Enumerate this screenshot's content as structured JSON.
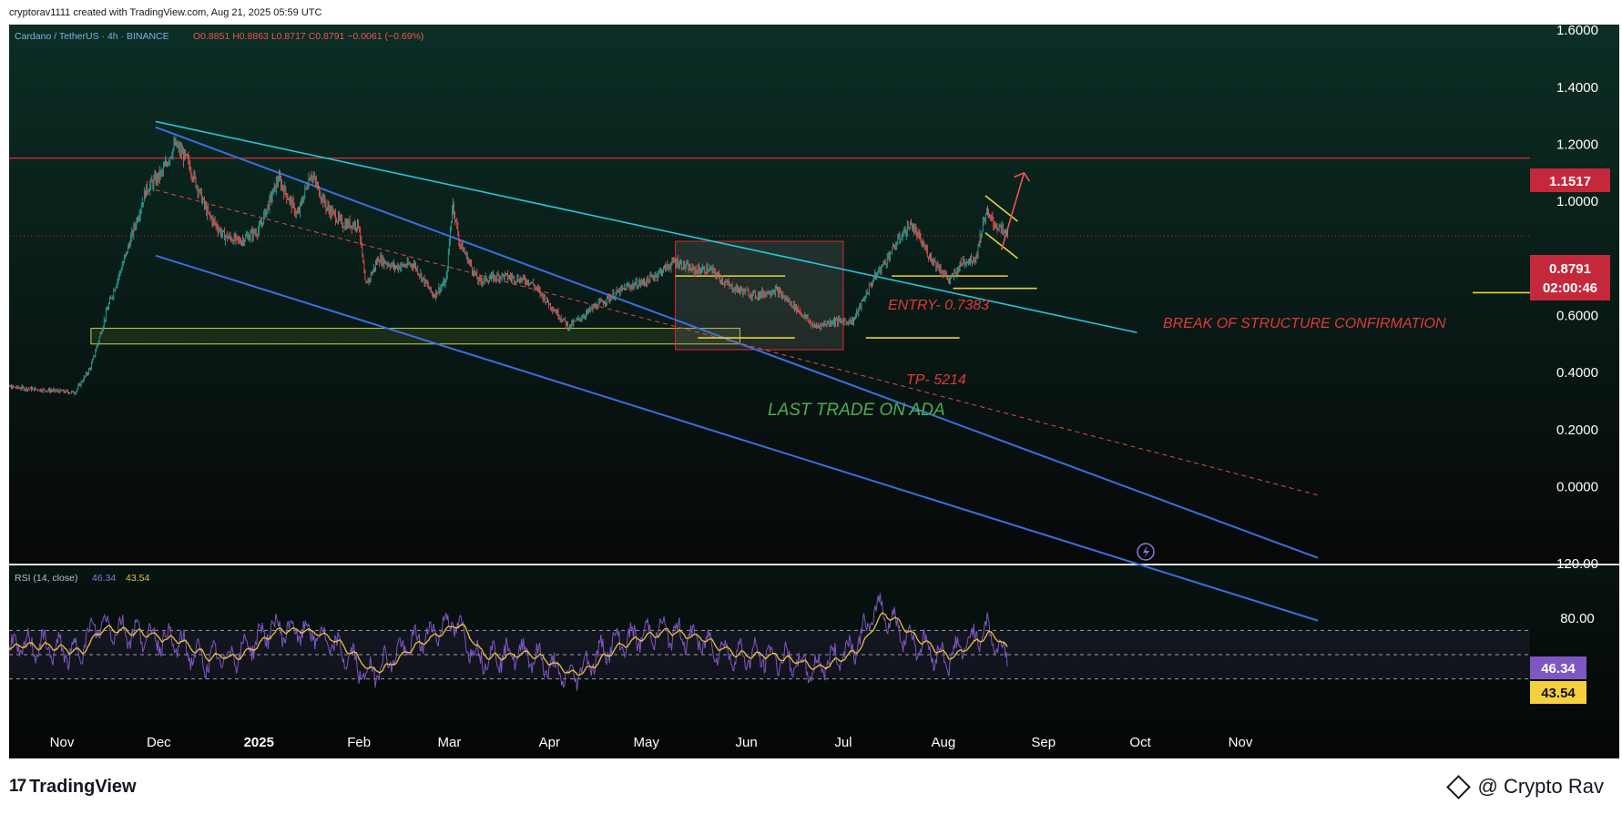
{
  "header": {
    "created_by": "cryptorav1111 created with TradingView.com, Aug 21, 2025 05:59 UTC"
  },
  "legend": {
    "symbol": "Cardano / TetherUS · 4h · BINANCE",
    "ohlc": "O0.8851 H0.8863 L0.8717 C0.8791 −0.0061 (−0.69%)"
  },
  "annotations": {
    "entry": "ENTRY- 0.7383",
    "tp": "TP- 5214",
    "bos": "BREAK OF STRUCTURE CONFIRMATION",
    "last_trade": "LAST TRADE ON ADA"
  },
  "price_badges": {
    "resistance": "1.1517",
    "last": "0.8791",
    "countdown": "02:00:46"
  },
  "rsi_legend": {
    "label": "RSI (14, close)",
    "v1": "46.34",
    "v2": "43.54"
  },
  "rsi_badges": {
    "rsi": "46.34",
    "ma": "43.54"
  },
  "footer": {
    "brand": "TradingView",
    "credit": "@ Crypto Rav"
  },
  "colors": {
    "bg_top": "#0b2e25",
    "bg_bottom": "#070808",
    "resistance": "#e0263a",
    "channel": "#3b6fe0",
    "trendline": "#26c6da",
    "zone": "#b8d94a",
    "level": "#e8d33b",
    "annotation": "#e03a3a",
    "last_trade": "#4caf50",
    "rsi_line": "#7e57c2",
    "rsi_ma": "#e8c23b",
    "up": "#26a69a",
    "down": "#ef5350"
  },
  "chart_data": {
    "type": "line",
    "title": "Cardano / TetherUS · 4h · BINANCE",
    "price_axis": {
      "ticks": [
        1.6,
        1.4,
        1.2,
        1.0,
        0.6,
        0.4,
        0.2,
        0.0
      ],
      "tick_labels": [
        "1.6000",
        "1.4000",
        "1.2000",
        "1.0000",
        "0.6000",
        "0.4000",
        "0.2000",
        "0.0000"
      ],
      "range": [
        -0.03,
        1.65
      ]
    },
    "time_axis": {
      "labels": [
        "Nov",
        "Dec",
        "2025",
        "Feb",
        "Mar",
        "Apr",
        "May",
        "Jun",
        "Jul",
        "Aug",
        "Sep",
        "Oct",
        "Nov"
      ],
      "dates": [
        "2024-11-01",
        "2024-12-01",
        "2025-01-01",
        "2025-02-01",
        "2025-03-01",
        "2025-04-01",
        "2025-05-01",
        "2025-06-01",
        "2025-07-01",
        "2025-08-01",
        "2025-09-01",
        "2025-10-01",
        "2025-11-01"
      ]
    },
    "price_series": {
      "name": "ADA/USDT",
      "x": [
        "2024-10-15",
        "2024-10-25",
        "2024-11-05",
        "2024-11-10",
        "2024-11-15",
        "2024-11-21",
        "2024-11-27",
        "2024-12-02",
        "2024-12-06",
        "2024-12-10",
        "2024-12-16",
        "2024-12-21",
        "2024-12-26",
        "2025-01-01",
        "2025-01-07",
        "2025-01-13",
        "2025-01-17",
        "2025-01-22",
        "2025-01-27",
        "2025-02-01",
        "2025-02-03",
        "2025-02-07",
        "2025-02-12",
        "2025-02-18",
        "2025-02-24",
        "2025-02-28",
        "2025-03-02",
        "2025-03-04",
        "2025-03-10",
        "2025-03-17",
        "2025-03-26",
        "2025-04-07",
        "2025-04-15",
        "2025-04-25",
        "2025-05-01",
        "2025-05-10",
        "2025-05-15",
        "2025-05-21",
        "2025-05-27",
        "2025-06-04",
        "2025-06-10",
        "2025-06-17",
        "2025-06-22",
        "2025-06-28",
        "2025-07-04",
        "2025-07-10",
        "2025-07-14",
        "2025-07-19",
        "2025-07-22",
        "2025-07-27",
        "2025-08-03",
        "2025-08-07",
        "2025-08-11",
        "2025-08-14",
        "2025-08-17",
        "2025-08-21"
      ],
      "values": [
        0.35,
        0.34,
        0.33,
        0.42,
        0.62,
        0.82,
        1.04,
        1.1,
        1.2,
        1.14,
        0.96,
        0.88,
        0.86,
        0.9,
        1.08,
        0.95,
        1.1,
        0.98,
        0.92,
        0.92,
        0.7,
        0.8,
        0.77,
        0.78,
        0.67,
        0.72,
        1.0,
        0.86,
        0.72,
        0.74,
        0.72,
        0.56,
        0.63,
        0.7,
        0.72,
        0.79,
        0.76,
        0.76,
        0.7,
        0.67,
        0.69,
        0.62,
        0.56,
        0.58,
        0.58,
        0.72,
        0.79,
        0.88,
        0.92,
        0.82,
        0.72,
        0.79,
        0.8,
        0.96,
        0.92,
        0.88
      ]
    },
    "horizontal_levels": [
      {
        "price": 1.1517,
        "label": "1.1517"
      },
      {
        "price": 0.8791,
        "label": "0.8791"
      }
    ],
    "trade": {
      "entry": 0.7383,
      "tp": 0.5214,
      "from": "2025-05-10",
      "to": "2025-07-01"
    },
    "demand_zone": {
      "from": "2024-11-10",
      "to": "2025-05-30",
      "low": 0.5,
      "high": 0.555
    },
    "descending_channel": {
      "upper": [
        [
          "2024-11-30",
          1.26
        ],
        [
          "2025-11-25",
          -0.25
        ]
      ],
      "mid": [
        [
          "2024-11-30",
          1.04
        ],
        [
          "2025-11-25",
          -0.03
        ]
      ],
      "lower": [
        [
          "2024-11-30",
          0.81
        ],
        [
          "2025-11-25",
          -0.47
        ]
      ]
    },
    "trendline": [
      [
        "2024-11-30",
        1.28
      ],
      [
        "2025-09-30",
        0.54
      ]
    ],
    "rsi": {
      "name": "RSI (14, close)",
      "current": 46.34,
      "ma_current": 43.54,
      "axis": {
        "ticks": [
          80,
          120
        ],
        "tick_labels": [
          "80.00",
          "120.00"
        ],
        "range": [
          -5,
          125
        ]
      },
      "bands": [
        70,
        50,
        30
      ],
      "x": [
        "2024-10-15",
        "2024-10-25",
        "2024-11-05",
        "2024-11-12",
        "2024-11-20",
        "2024-11-28",
        "2024-12-05",
        "2024-12-15",
        "2024-12-25",
        "2025-01-05",
        "2025-01-18",
        "2025-01-30",
        "2025-02-03",
        "2025-02-15",
        "2025-03-02",
        "2025-03-10",
        "2025-03-25",
        "2025-04-07",
        "2025-04-20",
        "2025-05-05",
        "2025-05-15",
        "2025-05-28",
        "2025-06-10",
        "2025-06-22",
        "2025-07-05",
        "2025-07-12",
        "2025-07-20",
        "2025-08-02",
        "2025-08-14",
        "2025-08-21"
      ],
      "values": [
        55,
        58,
        50,
        75,
        70,
        65,
        62,
        45,
        50,
        72,
        68,
        46,
        32,
        55,
        78,
        48,
        52,
        30,
        58,
        70,
        64,
        50,
        48,
        38,
        58,
        90,
        66,
        46,
        72,
        46
      ]
    }
  }
}
